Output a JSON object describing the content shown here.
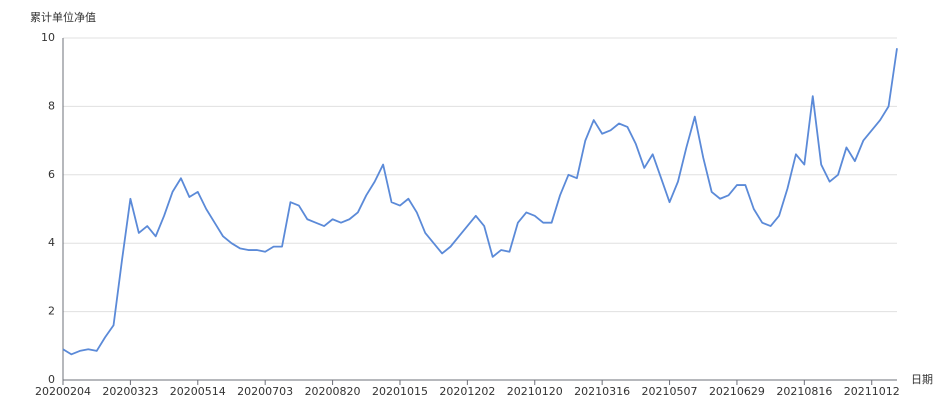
{
  "chart_data": {
    "type": "line",
    "y_axis_label": "累计单位净值",
    "x_axis_label": "日期",
    "categories": [
      "20200204",
      null,
      null,
      null,
      null,
      null,
      null,
      null,
      "20200323",
      null,
      null,
      null,
      null,
      null,
      null,
      null,
      "20200514",
      null,
      null,
      null,
      null,
      null,
      null,
      null,
      "20200703",
      null,
      null,
      null,
      null,
      null,
      null,
      null,
      "20200820",
      null,
      null,
      null,
      null,
      null,
      null,
      null,
      "20201015",
      null,
      null,
      null,
      null,
      null,
      null,
      null,
      "20201202",
      null,
      null,
      null,
      null,
      null,
      null,
      null,
      "20210120",
      null,
      null,
      null,
      null,
      null,
      null,
      null,
      "20210316",
      null,
      null,
      null,
      null,
      null,
      null,
      null,
      "20210507",
      null,
      null,
      null,
      null,
      null,
      null,
      null,
      "20210629",
      null,
      null,
      null,
      null,
      null,
      null,
      null,
      "20210816",
      null,
      null,
      null,
      null,
      null,
      null,
      null,
      "20211012",
      null,
      null,
      null
    ],
    "series": [
      {
        "name": "累计单位净值",
        "color": "#5b8ad8",
        "values": [
          0.9,
          0.75,
          0.85,
          0.9,
          0.85,
          1.25,
          1.6,
          3.5,
          5.3,
          4.3,
          4.5,
          4.2,
          4.8,
          5.5,
          5.9,
          5.35,
          5.5,
          5.0,
          4.6,
          4.2,
          4.0,
          3.85,
          3.8,
          3.8,
          3.75,
          3.9,
          3.9,
          5.2,
          5.1,
          4.7,
          4.6,
          4.5,
          4.7,
          4.6,
          4.7,
          4.9,
          5.4,
          5.8,
          6.3,
          5.2,
          5.1,
          5.3,
          4.9,
          4.3,
          4.0,
          3.7,
          3.9,
          4.2,
          4.5,
          4.8,
          4.5,
          3.6,
          3.8,
          3.75,
          4.6,
          4.9,
          4.8,
          4.6,
          4.6,
          5.4,
          6.0,
          5.9,
          7.0,
          7.6,
          7.2,
          7.3,
          7.5,
          7.4,
          6.9,
          6.2,
          6.6,
          5.9,
          5.2,
          5.8,
          6.8,
          7.7,
          6.5,
          5.5,
          5.3,
          5.4,
          5.7,
          5.7,
          5.0,
          4.6,
          4.5,
          4.8,
          5.6,
          6.6,
          6.3,
          8.3,
          6.3,
          5.8,
          6.0,
          6.8,
          6.4,
          7.0,
          7.3,
          7.6,
          8.0,
          9.7
        ]
      }
    ],
    "ylim": [
      0,
      10
    ],
    "yticks": [
      0,
      2,
      4,
      6,
      8,
      10
    ],
    "grid": true
  }
}
